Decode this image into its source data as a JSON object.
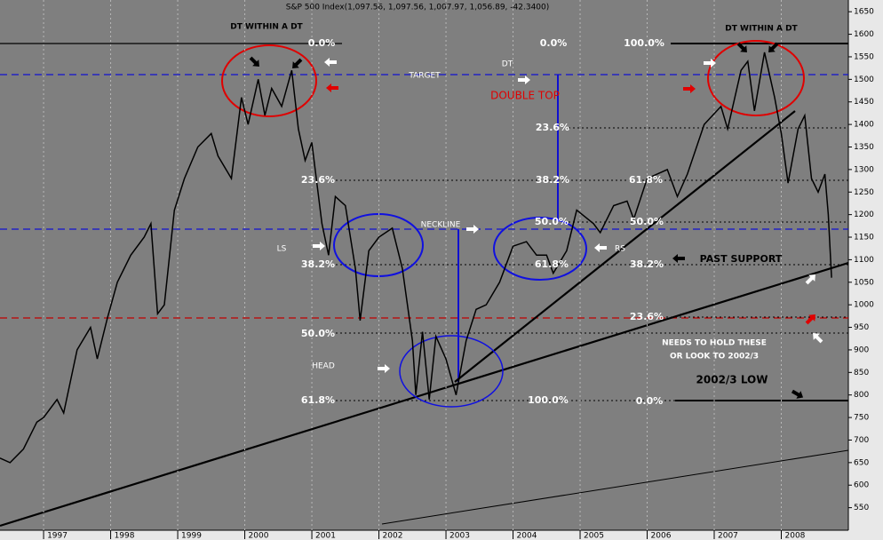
{
  "chart_data": {
    "type": "line",
    "title": "S&P 500 Index(1,097.56, 1,097.56, 1,007.97, 1,056.89, -42.3400)",
    "x": [
      1996.35,
      1996.5,
      1996.7,
      1996.9,
      1997.0,
      1997.2,
      1997.3,
      1997.5,
      1997.7,
      1997.8,
      1997.95,
      1998.1,
      1998.3,
      1998.5,
      1998.6,
      1998.7,
      1998.8,
      1998.95,
      1999.1,
      1999.3,
      1999.5,
      1999.6,
      1999.8,
      1999.95,
      2000.05,
      2000.2,
      2000.3,
      2000.4,
      2000.55,
      2000.7,
      2000.8,
      2000.9,
      2001.0,
      2001.15,
      2001.25,
      2001.35,
      2001.5,
      2001.65,
      2001.72,
      2001.85,
      2002.0,
      2002.2,
      2002.35,
      2002.5,
      2002.55,
      2002.65,
      2002.75,
      2002.85,
      2003.0,
      2003.15,
      2003.3,
      2003.45,
      2003.6,
      2003.8,
      2004.0,
      2004.2,
      2004.35,
      2004.5,
      2004.6,
      2004.8,
      2004.95,
      2005.2,
      2005.3,
      2005.5,
      2005.7,
      2005.8,
      2006.0,
      2006.3,
      2006.45,
      2006.6,
      2006.85,
      2007.1,
      2007.2,
      2007.4,
      2007.5,
      2007.6,
      2007.75,
      2007.9,
      2008.0,
      2008.1,
      2008.25,
      2008.35,
      2008.45,
      2008.55,
      2008.65,
      2008.7,
      2008.75
    ],
    "values": [
      660,
      650,
      680,
      740,
      750,
      790,
      760,
      900,
      950,
      880,
      970,
      1050,
      1110,
      1150,
      1180,
      980,
      1000,
      1210,
      1280,
      1350,
      1380,
      1330,
      1280,
      1460,
      1400,
      1500,
      1420,
      1480,
      1440,
      1520,
      1390,
      1320,
      1360,
      1180,
      1110,
      1240,
      1220,
      1080,
      965,
      1120,
      1150,
      1170,
      1080,
      920,
      800,
      940,
      790,
      930,
      880,
      800,
      920,
      990,
      1000,
      1050,
      1130,
      1140,
      1110,
      1110,
      1070,
      1120,
      1210,
      1180,
      1160,
      1220,
      1230,
      1190,
      1280,
      1300,
      1240,
      1290,
      1400,
      1440,
      1390,
      1520,
      1540,
      1430,
      1560,
      1460,
      1380,
      1270,
      1390,
      1420,
      1280,
      1250,
      1290,
      1200,
      1060
    ],
    "color": "#000000",
    "xlim": [
      1996.35,
      2009.0
    ],
    "xticks": [
      1997,
      1998,
      1999,
      2000,
      2001,
      2002,
      2003,
      2004,
      2005,
      2006,
      2007,
      2008
    ],
    "ylim": [
      500,
      1676
    ],
    "yticks": [
      550,
      600,
      650,
      700,
      750,
      800,
      850,
      900,
      950,
      1000,
      1050,
      1100,
      1150,
      1200,
      1250,
      1300,
      1350,
      1400,
      1450,
      1500,
      1550,
      1600,
      1650
    ],
    "xgrid": true,
    "annotations": [
      "DT WITHIN A DT",
      "DT WITHIN A DT",
      "0.0%",
      "0.0%",
      "100.0%",
      "TARGET",
      "DT",
      "DOUBLE TOP",
      "23.6%",
      "23.6%",
      "38.2%",
      "61.8%",
      "NECKLINE",
      "50.0%",
      "50.0%",
      "LS",
      "RS",
      "38.2%",
      "61.8%",
      "38.2%",
      "PAST SUPPORT",
      "50.0%",
      "23.6%",
      "NEEDS TO HOLD THESE",
      "OR LOOK TO 2002/3",
      "HEAD",
      "2002/3 LOW",
      "61.8%",
      "100.0%",
      "0.0%"
    ]
  }
}
